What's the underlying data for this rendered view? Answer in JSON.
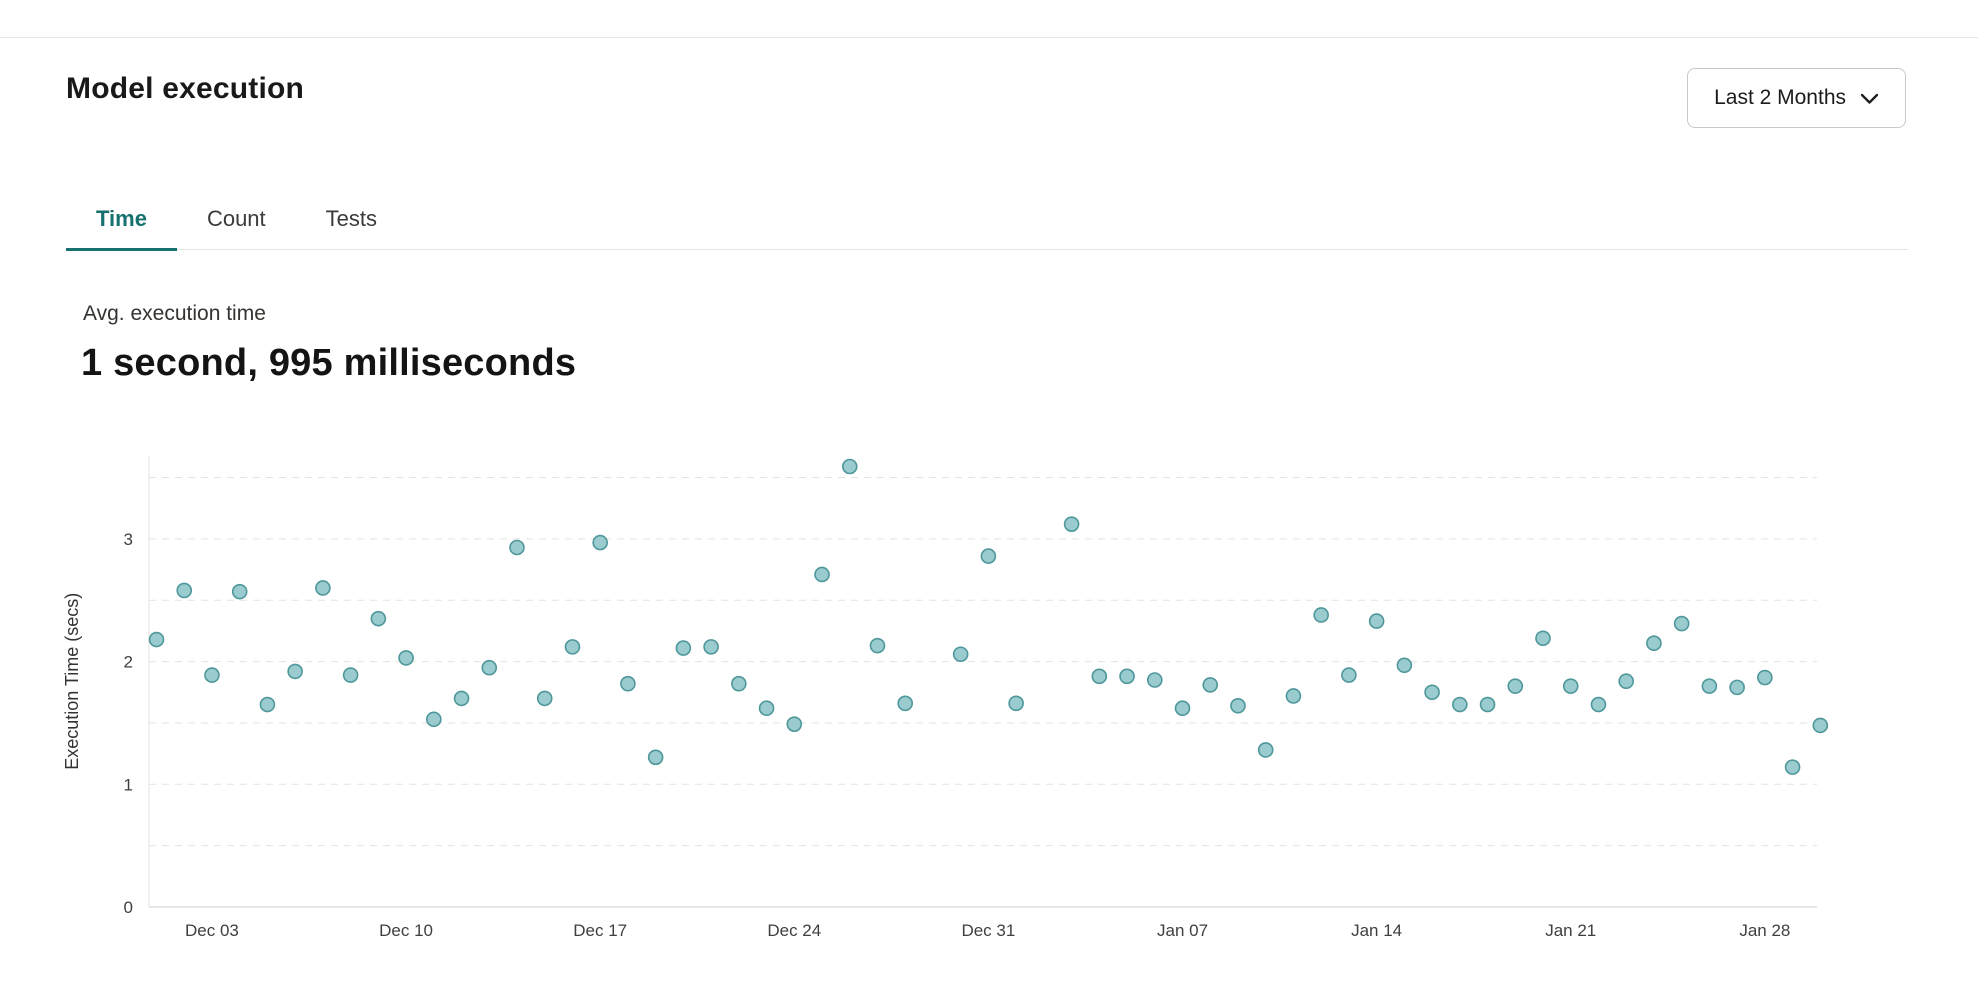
{
  "header": {
    "title": "Model execution",
    "range_selector": {
      "value": "Last 2 Months"
    }
  },
  "tabs": [
    {
      "label": "Time",
      "active": true
    },
    {
      "label": "Count",
      "active": false
    },
    {
      "label": "Tests",
      "active": false
    }
  ],
  "stat": {
    "label": "Avg. execution time",
    "value": "1 second, 995 milliseconds"
  },
  "colors": {
    "accent_teal": "#17716e",
    "dot_fill": "#8cc4c7",
    "dot_stroke": "#4e979b",
    "grid": "#e3e3e3",
    "axis": "#cfcfcf",
    "tick_text": "#3f3f3f",
    "axis_title_text": "#333333"
  },
  "chart_data": {
    "type": "scatter",
    "title": "",
    "xlabel": "",
    "ylabel": "Execution Time (secs)",
    "ylim": [
      0,
      3.68
    ],
    "grid": "dashed-horizontal",
    "gridlines": [
      0.5,
      1,
      1.5,
      2,
      2.5,
      3,
      3.5
    ],
    "y_ticks": [
      {
        "v": 0,
        "label": "0"
      },
      {
        "v": 1,
        "label": "1"
      },
      {
        "v": 2,
        "label": "2"
      },
      {
        "v": 3,
        "label": "3"
      }
    ],
    "x_ticks": [
      {
        "d": 2,
        "label": "Dec 03"
      },
      {
        "d": 9,
        "label": "Dec 10"
      },
      {
        "d": 16,
        "label": "Dec 17"
      },
      {
        "d": 23,
        "label": "Dec 24"
      },
      {
        "d": 30,
        "label": "Dec 31"
      },
      {
        "d": 37,
        "label": "Jan 07"
      },
      {
        "d": 44,
        "label": "Jan 14"
      },
      {
        "d": 51,
        "label": "Jan 21"
      },
      {
        "d": 58,
        "label": "Jan 28"
      }
    ],
    "points": [
      [
        0,
        2.18
      ],
      [
        1,
        2.58
      ],
      [
        2,
        1.89
      ],
      [
        3,
        2.57
      ],
      [
        4,
        1.65
      ],
      [
        5,
        1.92
      ],
      [
        6,
        2.6
      ],
      [
        7,
        1.89
      ],
      [
        8,
        2.35
      ],
      [
        9,
        2.03
      ],
      [
        10,
        1.53
      ],
      [
        11,
        1.7
      ],
      [
        12,
        1.95
      ],
      [
        13,
        2.93
      ],
      [
        14,
        1.7
      ],
      [
        15,
        2.12
      ],
      [
        16,
        2.97
      ],
      [
        17,
        1.82
      ],
      [
        18,
        1.22
      ],
      [
        19,
        2.11
      ],
      [
        20,
        2.12
      ],
      [
        21,
        1.82
      ],
      [
        22,
        1.62
      ],
      [
        23,
        1.49
      ],
      [
        24,
        2.71
      ],
      [
        25,
        3.59
      ],
      [
        26,
        2.13
      ],
      [
        27,
        1.66
      ],
      [
        29,
        2.06
      ],
      [
        30,
        2.86
      ],
      [
        31,
        1.66
      ],
      [
        33,
        3.12
      ],
      [
        34,
        1.88
      ],
      [
        35,
        1.88
      ],
      [
        36,
        1.85
      ],
      [
        37,
        1.62
      ],
      [
        38,
        1.81
      ],
      [
        39,
        1.64
      ],
      [
        40,
        1.28
      ],
      [
        41,
        1.72
      ],
      [
        42,
        2.38
      ],
      [
        43,
        1.89
      ],
      [
        44,
        2.33
      ],
      [
        45,
        1.97
      ],
      [
        46,
        1.75
      ],
      [
        47,
        1.65
      ],
      [
        48,
        1.65
      ],
      [
        49,
        1.8
      ],
      [
        50,
        2.19
      ],
      [
        51,
        1.8
      ],
      [
        52,
        1.65
      ],
      [
        53,
        1.84
      ],
      [
        54,
        2.15
      ],
      [
        55,
        2.31
      ],
      [
        56,
        1.8
      ],
      [
        57,
        1.79
      ],
      [
        58,
        1.87
      ],
      [
        59,
        1.14
      ],
      [
        60,
        1.48
      ]
    ]
  }
}
